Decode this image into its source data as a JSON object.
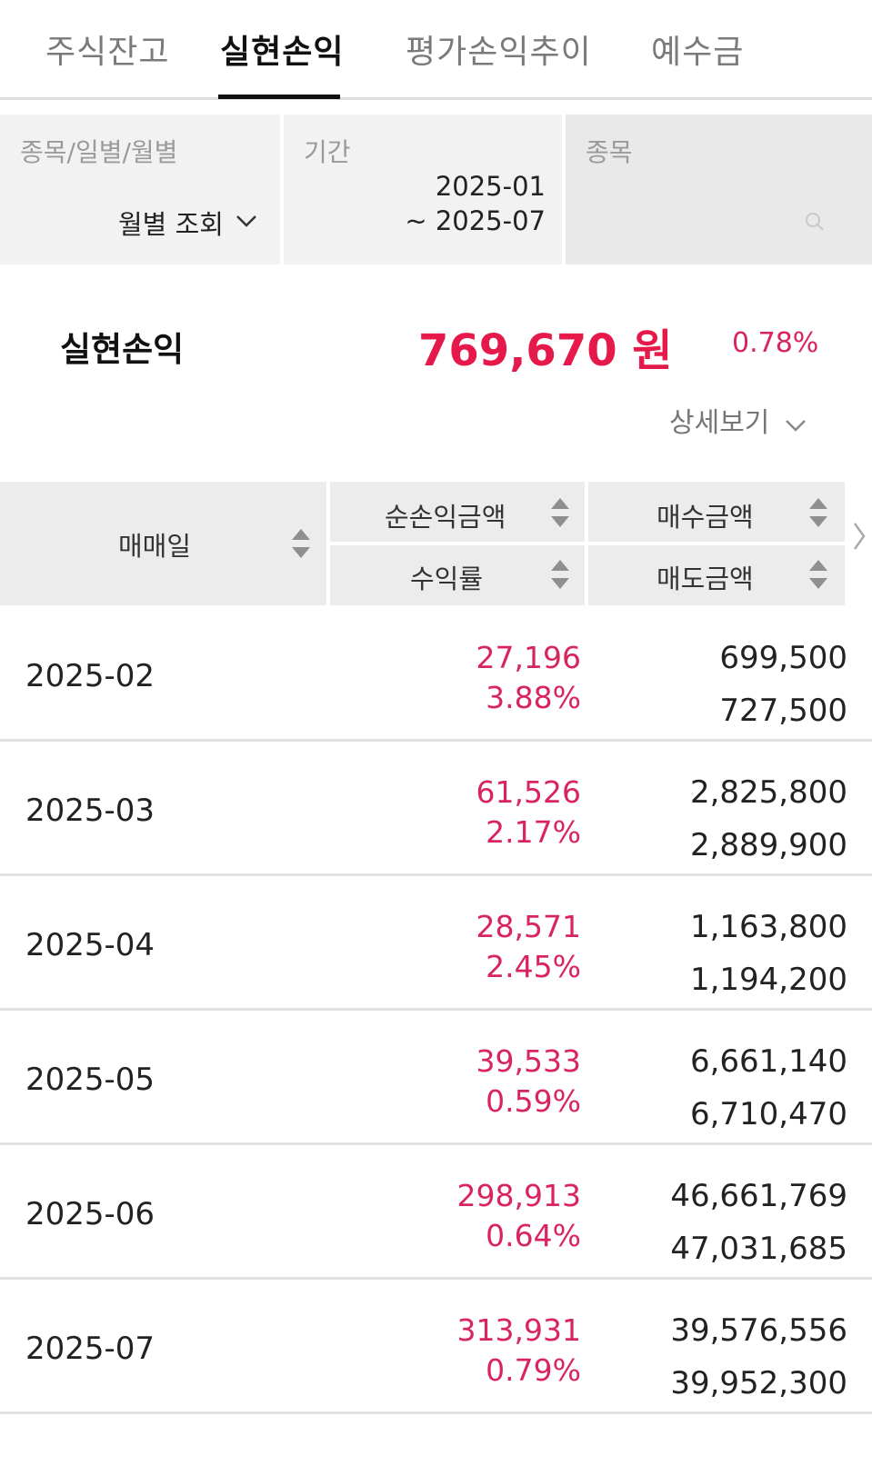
{
  "tabs": [
    {
      "label": "주식잔고"
    },
    {
      "label": "실현손익"
    },
    {
      "label": "평가손익추이"
    },
    {
      "label": "예수금"
    }
  ],
  "filters": {
    "type_label": "종목/일별/월별",
    "type_value": "월별 조회",
    "period_label": "기간",
    "period_start": "2025-01",
    "period_end": "~ 2025-07",
    "stock_label": "종목"
  },
  "summary": {
    "label": "실현손익",
    "amount": "769,670 원",
    "rate": "0.78%",
    "detail_label": "상세보기"
  },
  "table": {
    "headers": {
      "date": "매매일",
      "net_pnl": "순손익금액",
      "rate": "수익률",
      "buy": "매수금액",
      "sell": "매도금액"
    },
    "rows": [
      {
        "date": "2025-02",
        "net_pnl": "27,196",
        "rate": "3.88%",
        "buy": "699,500",
        "sell": "727,500"
      },
      {
        "date": "2025-03",
        "net_pnl": "61,526",
        "rate": "2.17%",
        "buy": "2,825,800",
        "sell": "2,889,900"
      },
      {
        "date": "2025-04",
        "net_pnl": "28,571",
        "rate": "2.45%",
        "buy": "1,163,800",
        "sell": "1,194,200"
      },
      {
        "date": "2025-05",
        "net_pnl": "39,533",
        "rate": "0.59%",
        "buy": "6,661,140",
        "sell": "6,710,470"
      },
      {
        "date": "2025-06",
        "net_pnl": "298,913",
        "rate": "0.64%",
        "buy": "46,661,769",
        "sell": "47,031,685"
      },
      {
        "date": "2025-07",
        "net_pnl": "313,931",
        "rate": "0.79%",
        "buy": "39,576,556",
        "sell": "39,952,300"
      }
    ]
  },
  "colors": {
    "profit": "#d8255e",
    "summary_amount": "#e6194b",
    "active_tab": "#111111"
  },
  "icons": {
    "dropdown": "chevron-down-icon",
    "search": "search-icon",
    "sort": "sort-icon",
    "scroll_right": "chevron-right-icon"
  }
}
